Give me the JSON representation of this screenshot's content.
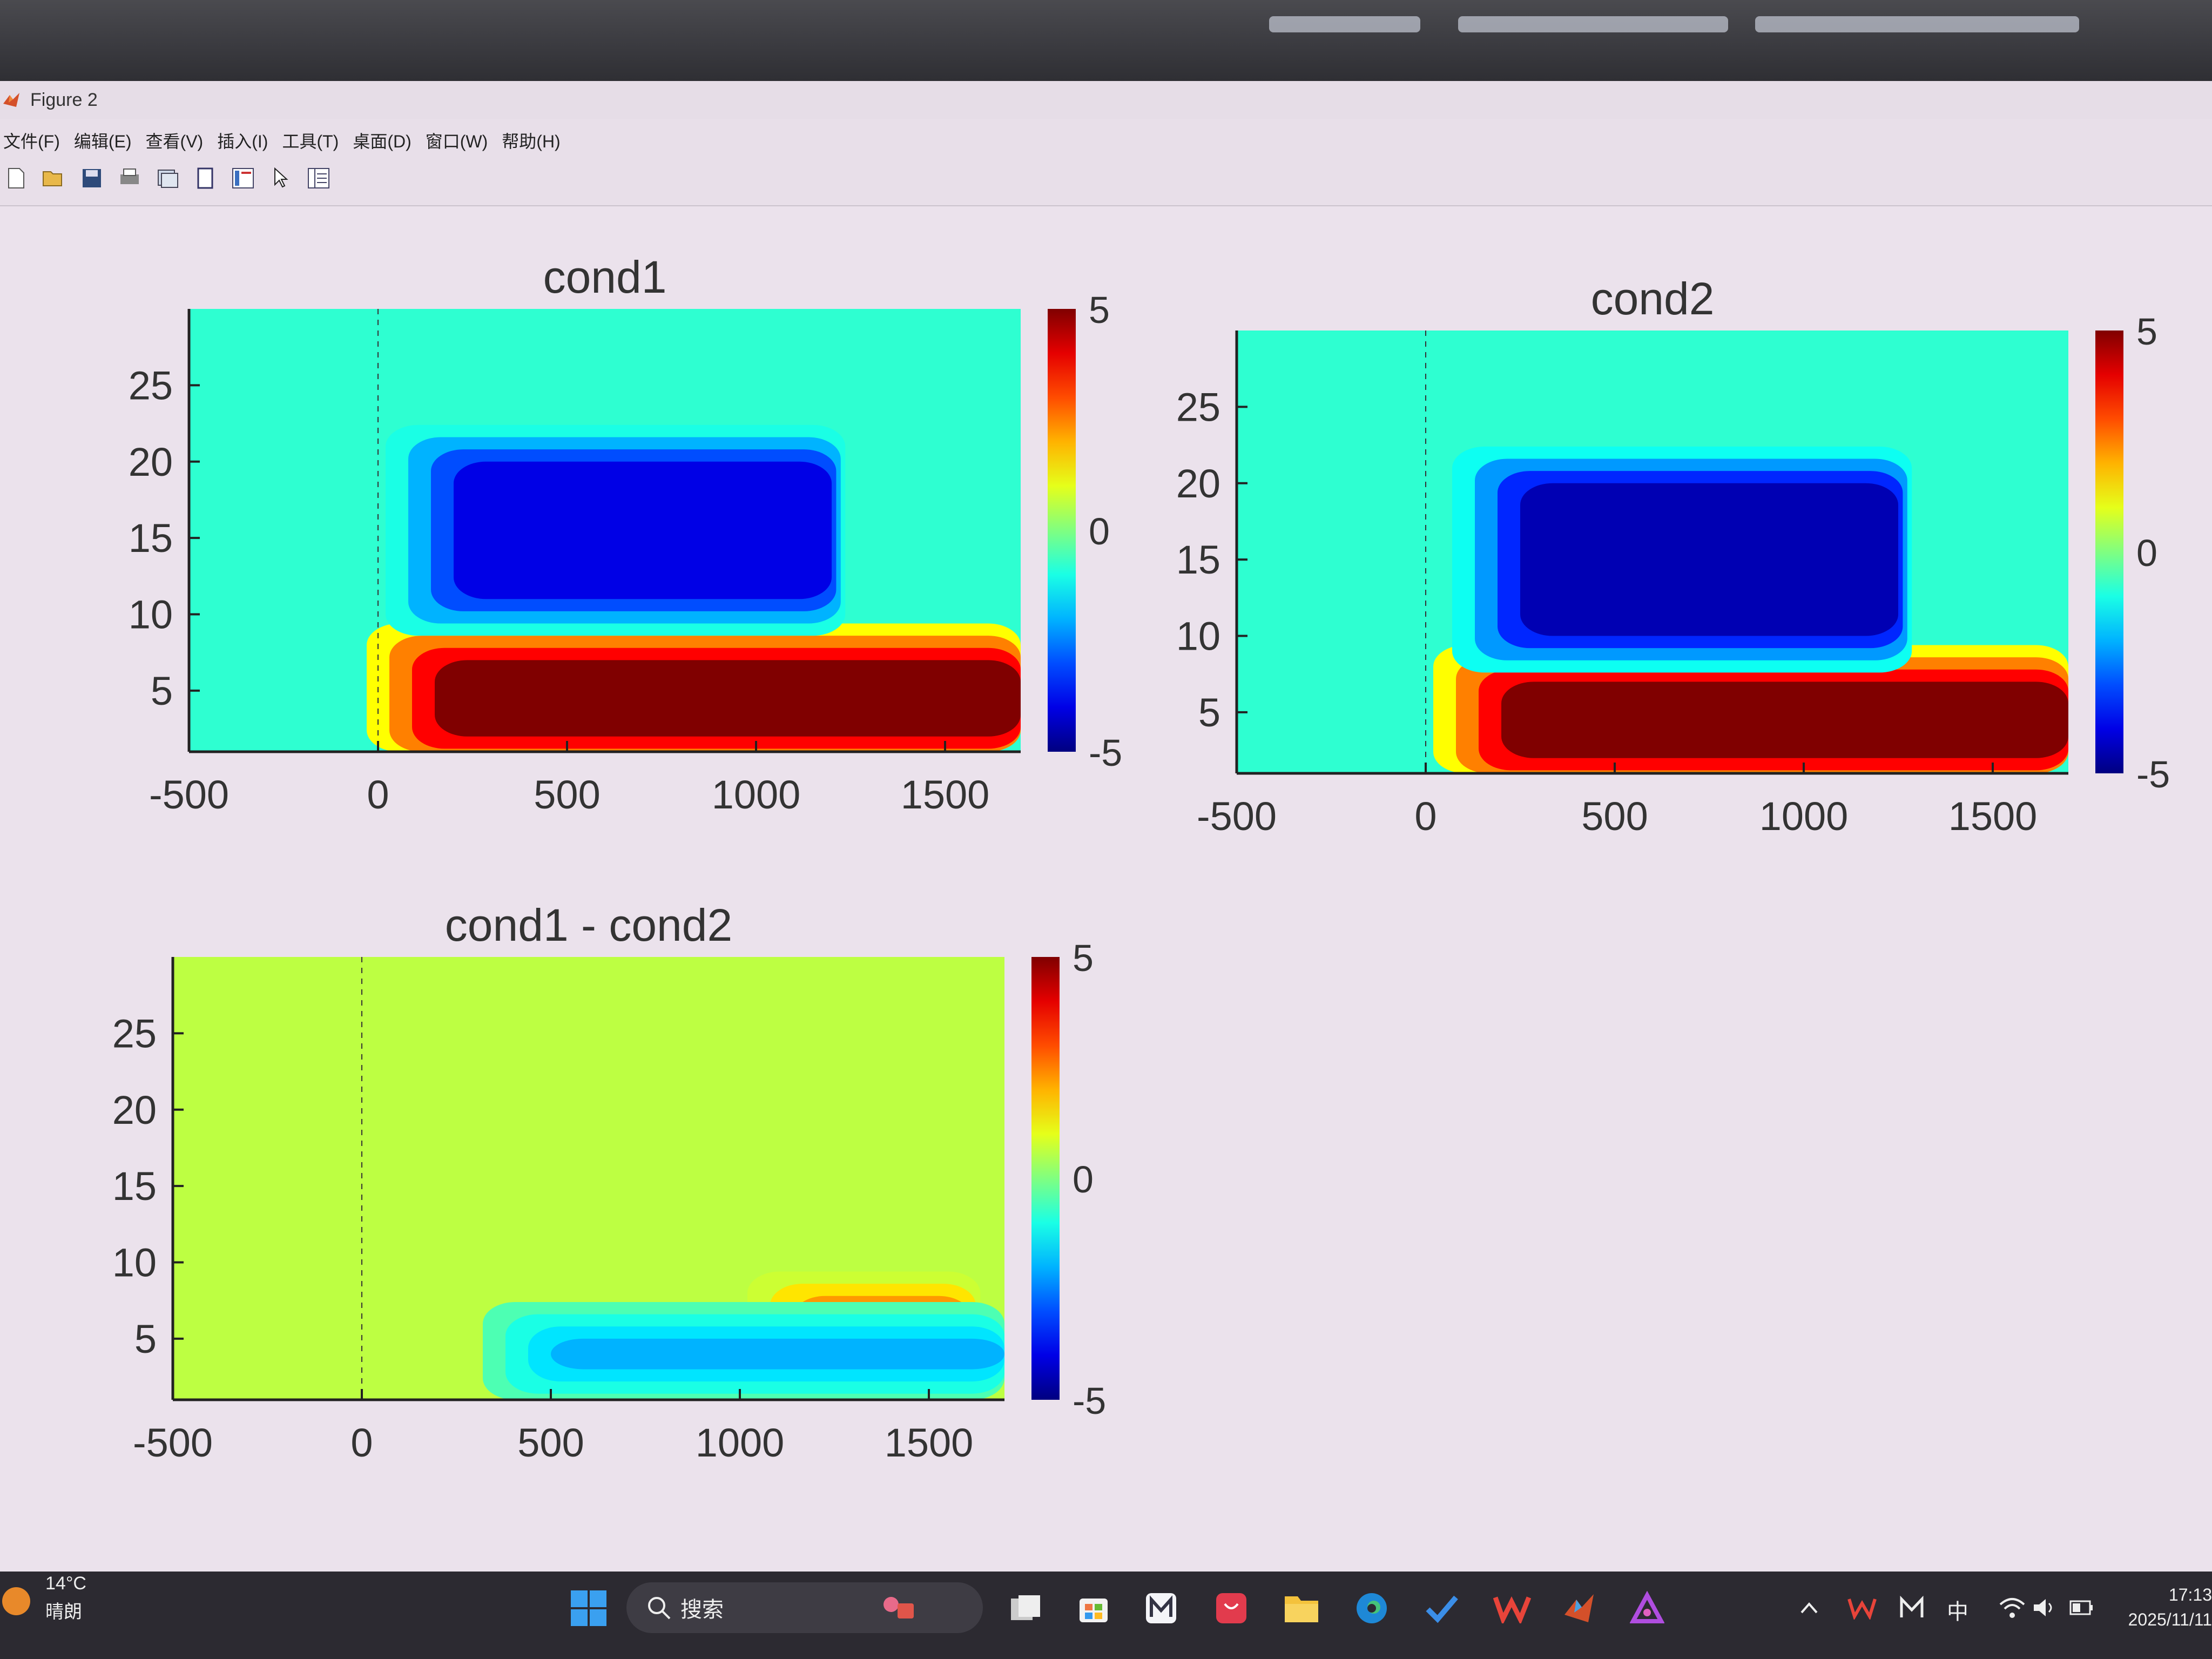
{
  "window": {
    "title": "Figure 2",
    "menu": [
      "文件(F)",
      "编辑(E)",
      "查看(V)",
      "插入(I)",
      "工具(T)",
      "桌面(D)",
      "窗口(W)",
      "帮助(H)"
    ],
    "toolbar_icons": [
      "new-figure-icon",
      "open-file-icon",
      "save-icon",
      "print-icon",
      "link-plot-icon",
      "docked-figure-icon",
      "insert-colorbar-icon",
      "edit-plot-cursor-icon",
      "property-inspector-icon"
    ]
  },
  "chart_data": [
    {
      "type": "heatmap",
      "title": "cond1",
      "x_ticks": [
        "-500",
        "0",
        "500",
        "1000",
        "1500"
      ],
      "y_ticks": [
        "5",
        "10",
        "15",
        "20",
        "25"
      ],
      "xlim": [
        -500,
        1700
      ],
      "ylim": [
        1,
        30
      ],
      "colorbar": {
        "min": -5,
        "max": 5,
        "ticks": [
          "5",
          "0",
          "-5"
        ],
        "colormap": "jet"
      },
      "reference_line_x": 0,
      "features": [
        {
          "kind": "positive",
          "value": 5,
          "time": [
            150,
            1700
          ],
          "freq": [
            2,
            7
          ]
        },
        {
          "kind": "negative",
          "value": -4,
          "time": [
            200,
            1200
          ],
          "freq": [
            11,
            20
          ]
        }
      ]
    },
    {
      "type": "heatmap",
      "title": "cond2",
      "x_ticks": [
        "-500",
        "0",
        "500",
        "1000",
        "1500"
      ],
      "y_ticks": [
        "5",
        "10",
        "15",
        "20",
        "25"
      ],
      "xlim": [
        -500,
        1700
      ],
      "ylim": [
        1,
        30
      ],
      "colorbar": {
        "min": -5,
        "max": 5,
        "ticks": [
          "5",
          "0",
          "-5"
        ],
        "colormap": "jet"
      },
      "reference_line_x": 0,
      "features": [
        {
          "kind": "positive",
          "value": 5,
          "time": [
            200,
            1700
          ],
          "freq": [
            2,
            7
          ]
        },
        {
          "kind": "negative",
          "value": -4.5,
          "time": [
            250,
            1250
          ],
          "freq": [
            10,
            20
          ]
        }
      ]
    },
    {
      "type": "heatmap",
      "title": "cond1 - cond2",
      "x_ticks": [
        "-500",
        "0",
        "500",
        "1000",
        "1500"
      ],
      "y_ticks": [
        "5",
        "10",
        "15",
        "20",
        "25"
      ],
      "xlim": [
        -500,
        1700
      ],
      "ylim": [
        1,
        30
      ],
      "colorbar": {
        "min": -5,
        "max": 5,
        "ticks": [
          "5",
          "0",
          "-5"
        ],
        "colormap": "jet"
      },
      "reference_line_x": 0,
      "features": [
        {
          "kind": "positive",
          "value": 3,
          "time": [
            1200,
            1600
          ],
          "freq": [
            5,
            7
          ]
        },
        {
          "kind": "negative",
          "value": -2,
          "time": [
            500,
            1700
          ],
          "freq": [
            3,
            5
          ]
        }
      ]
    }
  ],
  "taskbar": {
    "temperature": "14°C",
    "weather": "晴朗",
    "search_label": "搜索",
    "ime": "中",
    "time": "17:13",
    "date": "2025/11/11"
  }
}
